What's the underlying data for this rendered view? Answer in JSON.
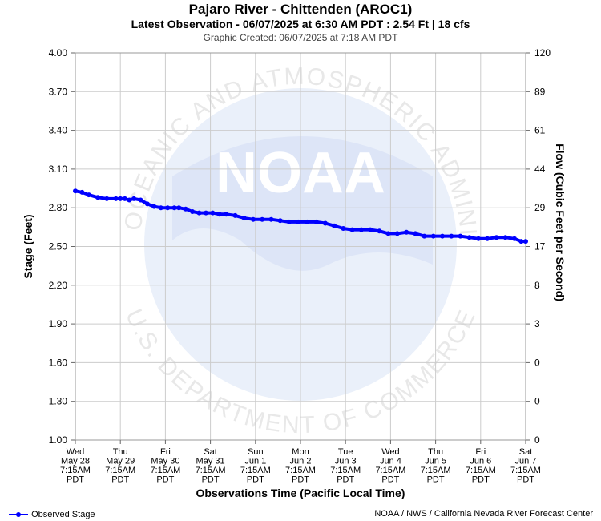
{
  "header": {
    "title": "Pajaro River - Chittenden (AROC1)",
    "latest": "Latest Observation - 06/07/2025 at 6:30 AM PDT : 2.54 Ft | 18 cfs",
    "created": "Graphic Created: 06/07/2025 at 7:18 AM PDT"
  },
  "watermark": {
    "logo_text": "NOAA",
    "ring_top": "NATIONAL OCEANIC AND ATMOSPHERIC ADMINISTRATION",
    "ring_bottom": "U.S. DEPARTMENT OF COMMERCE"
  },
  "footer": {
    "legend_label": "Observed Stage",
    "credit": "NOAA / NWS / California Nevada River Forecast Center"
  },
  "colors": {
    "series": "#0000ff",
    "grid": "#cccccc",
    "watermark": "#e6ecf8"
  },
  "chart_data": {
    "type": "line",
    "xlabel": "Observations Time (Pacific Local Time)",
    "ylabel": "Stage (Feet)",
    "y2label": "Flow (Cubic Feet per Second)",
    "ylim": [
      1.0,
      4.0
    ],
    "xlim": [
      0,
      10
    ],
    "grid": true,
    "legend_position": "bottom-left",
    "y_ticks": [
      "1.00",
      "1.30",
      "1.60",
      "1.90",
      "2.20",
      "2.50",
      "2.80",
      "3.10",
      "3.40",
      "3.70",
      "4.00"
    ],
    "y2_ticks": [
      "0",
      "0",
      "0",
      "3",
      "8",
      "17",
      "29",
      "44",
      "61",
      "89",
      "120"
    ],
    "x_ticks": [
      [
        "Wed",
        "May 28",
        "7:15AM",
        "PDT"
      ],
      [
        "Thu",
        "May 29",
        "7:15AM",
        "PDT"
      ],
      [
        "Fri",
        "May 30",
        "7:15AM",
        "PDT"
      ],
      [
        "Sat",
        "May 31",
        "7:15AM",
        "PDT"
      ],
      [
        "Sun",
        "Jun 1",
        "7:15AM",
        "PDT"
      ],
      [
        "Mon",
        "Jun 2",
        "7:15AM",
        "PDT"
      ],
      [
        "Tue",
        "Jun 3",
        "7:15AM",
        "PDT"
      ],
      [
        "Wed",
        "Jun 4",
        "7:15AM",
        "PDT"
      ],
      [
        "Thu",
        "Jun 5",
        "7:15AM",
        "PDT"
      ],
      [
        "Fri",
        "Jun 6",
        "7:15AM",
        "PDT"
      ],
      [
        "Sat",
        "Jun 7",
        "7:15AM",
        "PDT"
      ]
    ],
    "series": [
      {
        "name": "Observed Stage",
        "x": [
          0,
          0.15,
          0.3,
          0.5,
          0.7,
          0.9,
          1.0,
          1.1,
          1.2,
          1.3,
          1.45,
          1.6,
          1.75,
          1.9,
          2.05,
          2.2,
          2.3,
          2.45,
          2.6,
          2.75,
          2.9,
          3.05,
          3.2,
          3.35,
          3.55,
          3.75,
          3.95,
          4.15,
          4.35,
          4.55,
          4.75,
          4.95,
          5.15,
          5.35,
          5.55,
          5.75,
          5.95,
          6.15,
          6.35,
          6.55,
          6.75,
          6.95,
          7.15,
          7.35,
          7.55,
          7.75,
          7.95,
          8.15,
          8.35,
          8.55,
          8.75,
          8.95,
          9.15,
          9.35,
          9.55,
          9.75,
          9.9,
          10.0
        ],
        "y": [
          2.93,
          2.92,
          2.9,
          2.88,
          2.87,
          2.87,
          2.87,
          2.87,
          2.86,
          2.87,
          2.86,
          2.83,
          2.81,
          2.8,
          2.8,
          2.8,
          2.8,
          2.79,
          2.77,
          2.76,
          2.76,
          2.76,
          2.75,
          2.75,
          2.74,
          2.72,
          2.71,
          2.71,
          2.71,
          2.7,
          2.69,
          2.69,
          2.69,
          2.69,
          2.68,
          2.66,
          2.64,
          2.63,
          2.63,
          2.63,
          2.62,
          2.6,
          2.6,
          2.61,
          2.6,
          2.58,
          2.58,
          2.58,
          2.58,
          2.58,
          2.57,
          2.56,
          2.56,
          2.57,
          2.57,
          2.56,
          2.54,
          2.54
        ]
      }
    ]
  }
}
